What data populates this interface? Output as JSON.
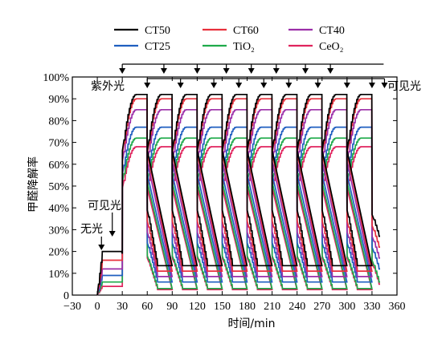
{
  "chart_data": {
    "type": "line",
    "xlabel": "时间/min",
    "ylabel": "甲醛降解率",
    "xlim": [
      -30,
      360
    ],
    "ylim": [
      0,
      100
    ],
    "x_ticks": [
      "−30",
      "0",
      "30",
      "60",
      "90",
      "120",
      "150",
      "180",
      "210",
      "240",
      "270",
      "300",
      "330",
      "360"
    ],
    "x_tick_values": [
      -30,
      0,
      30,
      60,
      90,
      120,
      150,
      180,
      210,
      240,
      270,
      300,
      330,
      360
    ],
    "y_ticks": [
      "0",
      "10%",
      "20%",
      "30%",
      "40%",
      "50%",
      "60%",
      "70%",
      "80%",
      "90%",
      "100%"
    ],
    "y_tick_values": [
      0,
      10,
      20,
      30,
      40,
      50,
      60,
      70,
      80,
      90,
      100
    ],
    "legend": [
      {
        "name": "CT50",
        "color": "#000000"
      },
      {
        "name": "CT60",
        "color": "#e8303c"
      },
      {
        "name": "CT40",
        "color": "#9b2ea8"
      },
      {
        "name": "CT25",
        "color": "#1f5fc0"
      },
      {
        "name": "TiO₂",
        "color": "#1faa4a"
      },
      {
        "name": "CeO₂",
        "color": "#e0245e"
      }
    ],
    "annotations": {
      "uv_label": "紫外光",
      "visible_label_top": "可见光",
      "visible_label_left": "可见光",
      "dark_label": "无光"
    },
    "uv_switch_times": [
      30,
      75,
      105,
      135,
      165,
      195,
      225,
      255,
      285,
      315
    ],
    "visible_switch_times": [
      60,
      90,
      120,
      150,
      180,
      210,
      240,
      270,
      300,
      330
    ],
    "cycle_starts": [
      30,
      60,
      90,
      120,
      150,
      180,
      210,
      240,
      270,
      300
    ],
    "series": [
      {
        "name": "CT50",
        "color": "#000000",
        "dark_level": 20,
        "visible_level": 19,
        "uv_plateau": 92,
        "light_off_tail": 27
      },
      {
        "name": "CT60",
        "color": "#e8303c",
        "dark_level": 16,
        "visible_level": 16,
        "uv_plateau": 90,
        "light_off_tail": 22
      },
      {
        "name": "CT40",
        "color": "#9b2ea8",
        "dark_level": 12,
        "visible_level": 12,
        "uv_plateau": 85,
        "light_off_tail": 17
      },
      {
        "name": "CT25",
        "color": "#1f5fc0",
        "dark_level": 9,
        "visible_level": 9,
        "uv_plateau": 77,
        "light_off_tail": 12
      },
      {
        "name": "TiO₂",
        "color": "#1faa4a",
        "dark_level": 6,
        "visible_level": 6,
        "uv_plateau": 72,
        "light_off_tail": 6
      },
      {
        "name": "CeO₂",
        "color": "#e0245e",
        "dark_level": 4,
        "visible_level": 4,
        "uv_plateau": 68,
        "light_off_tail": 5
      }
    ]
  }
}
